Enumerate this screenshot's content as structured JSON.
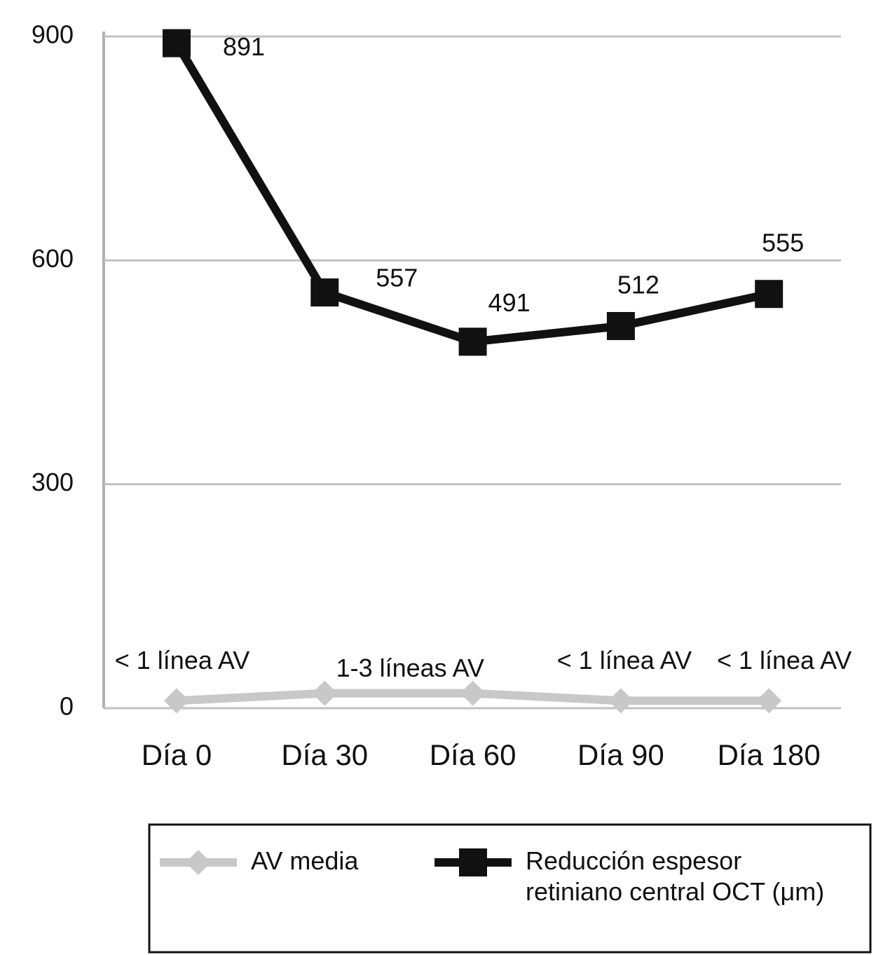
{
  "chart_data": {
    "type": "line",
    "categories": [
      "Día 0",
      "Día 30",
      "Día 60",
      "Día 90",
      "Día 180"
    ],
    "series": [
      {
        "name": "AV media",
        "color": "#c8c8c8",
        "marker": "diamond",
        "values": [
          10,
          20,
          20,
          10,
          10
        ],
        "value_labels": [
          "< 1 línea AV",
          "1-3 líneas AV",
          null,
          "< 1 línea AV",
          "< 1 línea AV"
        ]
      },
      {
        "name": "Reducción espesor retiniano central OCT (μm)",
        "color": "#111111",
        "marker": "square",
        "values": [
          891,
          557,
          491,
          512,
          555
        ]
      }
    ],
    "ylim": [
      0,
      900
    ],
    "yticks": [
      0,
      300,
      600,
      900
    ],
    "grid": true,
    "legend": "bottom"
  }
}
